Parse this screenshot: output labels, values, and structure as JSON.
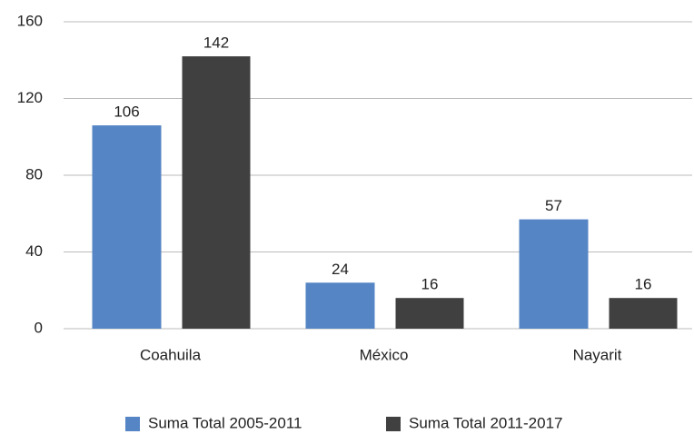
{
  "chart_data": {
    "type": "bar",
    "categories": [
      "Coahuila",
      "México",
      "Nayarit"
    ],
    "series": [
      {
        "name": "Suma Total 2005-2011",
        "color": "#5585c5",
        "values": [
          106,
          24,
          57
        ]
      },
      {
        "name": "Suma Total 2011-2017",
        "color": "#404040",
        "values": [
          142,
          16,
          16
        ]
      }
    ],
    "ylim": [
      0,
      160
    ],
    "yticks": [
      0,
      40,
      80,
      120,
      160
    ],
    "grid": true,
    "legend": "bottom"
  }
}
